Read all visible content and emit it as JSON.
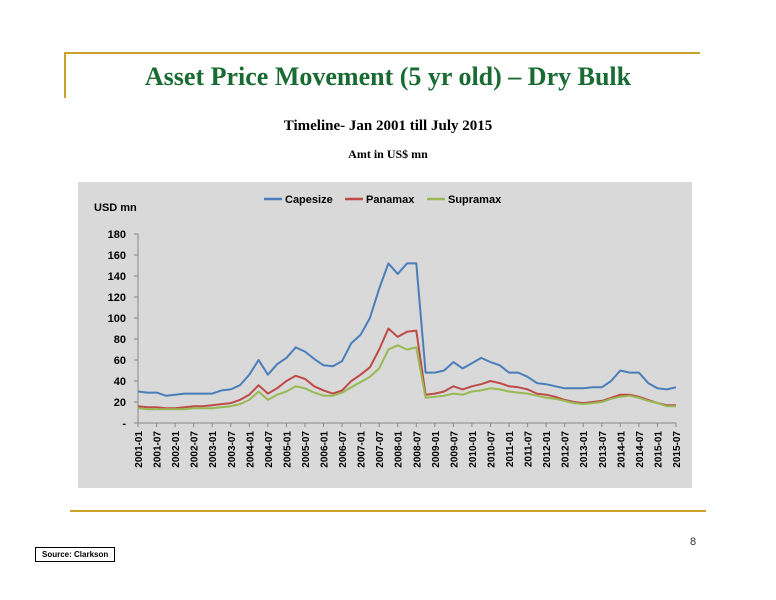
{
  "slide": {
    "title": "Asset Price Movement (5 yr old) – Dry Bulk",
    "subtitle": "Timeline- Jan 2001 till July 2015",
    "unit_note": "Amt in US$ mn",
    "page_number": "8",
    "source": "Source: Clarkson"
  },
  "colors": {
    "accent_rule": "#c9a227",
    "title": "#1a6b33",
    "chart_background": "#d9d9d9"
  },
  "chart_data": {
    "type": "line",
    "title": "",
    "ylabel": "USD mn",
    "xlabel": "",
    "ylim": [
      0,
      180
    ],
    "yticks": [
      0,
      20,
      40,
      60,
      80,
      100,
      120,
      140,
      160,
      180
    ],
    "ytick_labels": [
      "-",
      "20",
      "40",
      "60",
      "80",
      "100",
      "120",
      "140",
      "160",
      "180"
    ],
    "legend_position": "top",
    "grid": false,
    "x_tick_labels": [
      "2001-01",
      "2001-07",
      "2002-01",
      "2002-07",
      "2003-01",
      "2003-07",
      "2004-01",
      "2004-07",
      "2005-01",
      "2005-07",
      "2006-01",
      "2006-07",
      "2007-01",
      "2007-07",
      "2008-01",
      "2008-07",
      "2009-01",
      "2009-07",
      "2010-01",
      "2010-07",
      "2011-01",
      "2011-07",
      "2012-01",
      "2012-07",
      "2013-01",
      "2013-07",
      "2014-01",
      "2014-07",
      "2015-01",
      "2015-07"
    ],
    "x": [
      "2001-01",
      "2001-04",
      "2001-07",
      "2001-10",
      "2002-01",
      "2002-04",
      "2002-07",
      "2002-10",
      "2003-01",
      "2003-04",
      "2003-07",
      "2003-10",
      "2004-01",
      "2004-04",
      "2004-07",
      "2004-10",
      "2005-01",
      "2005-04",
      "2005-07",
      "2005-10",
      "2006-01",
      "2006-04",
      "2006-07",
      "2006-10",
      "2007-01",
      "2007-04",
      "2007-07",
      "2007-10",
      "2008-01",
      "2008-04",
      "2008-07",
      "2008-10",
      "2009-01",
      "2009-04",
      "2009-07",
      "2009-10",
      "2010-01",
      "2010-04",
      "2010-07",
      "2010-10",
      "2011-01",
      "2011-04",
      "2011-07",
      "2011-10",
      "2012-01",
      "2012-04",
      "2012-07",
      "2012-10",
      "2013-01",
      "2013-04",
      "2013-07",
      "2013-10",
      "2014-01",
      "2014-04",
      "2014-07",
      "2014-10",
      "2015-01",
      "2015-04",
      "2015-07"
    ],
    "series": [
      {
        "name": "Capesize",
        "color": "#4a7ebb",
        "values": [
          30,
          29,
          29,
          26,
          27,
          28,
          28,
          28,
          28,
          31,
          32,
          36,
          46,
          60,
          46,
          56,
          62,
          72,
          68,
          61,
          55,
          54,
          59,
          76,
          84,
          100,
          128,
          152,
          142,
          152,
          152,
          48,
          48,
          50,
          58,
          52,
          57,
          62,
          58,
          55,
          48,
          48,
          44,
          38,
          37,
          35,
          33,
          33,
          33,
          34,
          34,
          40,
          50,
          48,
          48,
          38,
          33,
          32,
          34
        ]
      },
      {
        "name": "Panamax",
        "color": "#be4b48",
        "values": [
          16,
          15,
          15,
          14,
          14,
          15,
          16,
          16,
          17,
          18,
          19,
          22,
          27,
          36,
          28,
          33,
          40,
          45,
          42,
          35,
          31,
          28,
          31,
          40,
          46,
          53,
          70,
          90,
          82,
          87,
          88,
          27,
          28,
          30,
          35,
          32,
          35,
          37,
          40,
          38,
          35,
          34,
          32,
          28,
          27,
          25,
          22,
          20,
          19,
          20,
          21,
          24,
          27,
          27,
          25,
          22,
          19,
          17,
          17
        ]
      },
      {
        "name": "Supramax",
        "color": "#98b954",
        "values": [
          14,
          13,
          13,
          13,
          13,
          13,
          14,
          14,
          14,
          15,
          16,
          18,
          22,
          30,
          22,
          27,
          30,
          35,
          33,
          29,
          26,
          26,
          29,
          34,
          39,
          44,
          52,
          70,
          74,
          70,
          72,
          24,
          25,
          26,
          28,
          27,
          30,
          31,
          33,
          32,
          30,
          29,
          28,
          26,
          24,
          23,
          21,
          19,
          18,
          19,
          20,
          23,
          25,
          26,
          24,
          21,
          19,
          16,
          16
        ]
      }
    ]
  }
}
